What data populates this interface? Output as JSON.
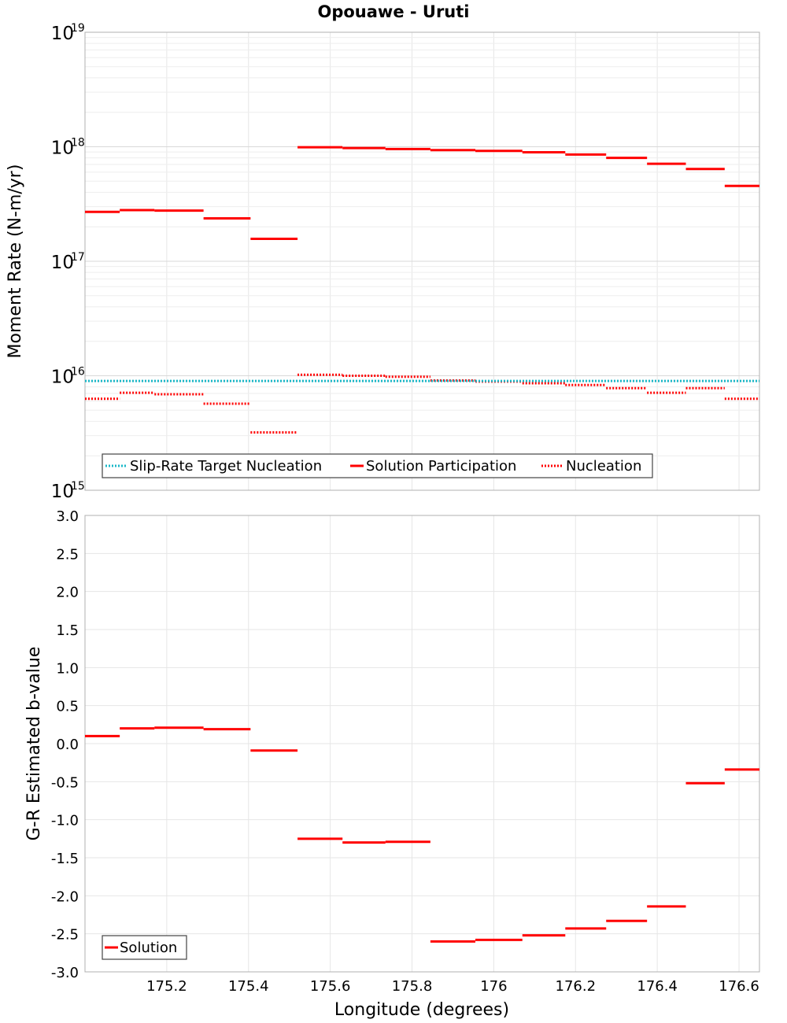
{
  "chart_data": [
    {
      "type": "line",
      "title": "Opouawe - Uruti",
      "ylabel": "Moment Rate (N-m/yr)",
      "xlabel": "",
      "yscale": "log",
      "ylim": [
        1000000000000000.0,
        1e+19
      ],
      "xlim": [
        175.0,
        176.65
      ],
      "x_ticks": [
        175.2,
        175.4,
        175.6,
        175.8,
        176.0,
        176.2,
        176.4,
        176.6
      ],
      "y_ticks": [
        {
          "base": "10",
          "exp": "15"
        },
        {
          "base": "10",
          "exp": "16"
        },
        {
          "base": "10",
          "exp": "17"
        },
        {
          "base": "10",
          "exp": "18"
        },
        {
          "base": "10",
          "exp": "19"
        }
      ],
      "legend_position": "bottom-left",
      "series": [
        {
          "name": "Slip-Rate Target Nucleation",
          "color": "#1bb8c8",
          "style": "dotted",
          "segments": [
            [
              175.0,
              176.65,
              9000000000000000.0
            ]
          ]
        },
        {
          "name": "Solution Participation",
          "color": "#ff0000",
          "style": "solid",
          "segments": [
            [
              175.0,
              175.085,
              2.7e+17
            ],
            [
              175.085,
              175.17,
              2.8e+17
            ],
            [
              175.17,
              175.29,
              2.77e+17
            ],
            [
              175.29,
              175.405,
              2.37e+17
            ],
            [
              175.405,
              175.52,
              1.57e+17
            ],
            [
              175.52,
              175.63,
              9.9e+17
            ],
            [
              175.63,
              175.735,
              9.75e+17
            ],
            [
              175.735,
              175.845,
              9.55e+17
            ],
            [
              175.845,
              175.955,
              9.35e+17
            ],
            [
              175.955,
              176.07,
              9.2e+17
            ],
            [
              176.07,
              176.175,
              8.95e+17
            ],
            [
              176.175,
              176.275,
              8.55e+17
            ],
            [
              176.275,
              176.375,
              8e+17
            ],
            [
              176.375,
              176.47,
              7.1e+17
            ],
            [
              176.47,
              176.565,
              6.4e+17
            ],
            [
              176.565,
              176.65,
              4.55e+17
            ]
          ]
        },
        {
          "name": "Nucleation",
          "color": "#ff0000",
          "style": "dotted",
          "segments": [
            [
              175.0,
              175.085,
              6300000000000000.0
            ],
            [
              175.085,
              175.17,
              7100000000000000.0
            ],
            [
              175.17,
              175.29,
              6900000000000000.0
            ],
            [
              175.29,
              175.405,
              5700000000000000.0
            ],
            [
              175.405,
              175.52,
              3200000000000000.0
            ],
            [
              175.52,
              175.63,
              1.02e+16
            ],
            [
              175.63,
              175.735,
              1e+16
            ],
            [
              175.735,
              175.845,
              9800000000000000.0
            ],
            [
              175.845,
              175.955,
              9100000000000000.0
            ],
            [
              175.955,
              176.07,
              8900000000000000.0
            ],
            [
              176.07,
              176.175,
              8600000000000000.0
            ],
            [
              176.175,
              176.275,
              8300000000000000.0
            ],
            [
              176.275,
              176.375,
              7800000000000000.0
            ],
            [
              176.375,
              176.47,
              7100000000000000.0
            ],
            [
              176.47,
              176.565,
              7800000000000000.0
            ],
            [
              176.565,
              176.65,
              6300000000000000.0
            ]
          ]
        }
      ]
    },
    {
      "type": "line",
      "title": "",
      "ylabel": "G-R Estimated b-value",
      "xlabel": "Longitude (degrees)",
      "ylim": [
        -3.0,
        3.0
      ],
      "xlim": [
        175.0,
        176.65
      ],
      "x_ticks": [
        175.2,
        175.4,
        175.6,
        175.8,
        176.0,
        176.2,
        176.4,
        176.6
      ],
      "x_tick_labels": [
        "175.2",
        "175.4",
        "175.6",
        "175.8",
        "176",
        "176.2",
        "176.4",
        "176.6"
      ],
      "y_ticks": [
        3.0,
        2.5,
        2.0,
        1.5,
        1.0,
        0.5,
        0.0,
        -0.5,
        -1.0,
        -1.5,
        -2.0,
        -2.5,
        -3.0
      ],
      "y_tick_labels": [
        "3.0",
        "2.5",
        "2.0",
        "1.5",
        "1.0",
        "0.5",
        "0.0",
        "-0.5",
        "-1.0",
        "-1.5",
        "-2.0",
        "-2.5",
        "-3.0"
      ],
      "legend_position": "bottom-left",
      "series": [
        {
          "name": "Solution",
          "color": "#ff0000",
          "style": "solid",
          "segments": [
            [
              175.0,
              175.085,
              0.1
            ],
            [
              175.085,
              175.17,
              0.2
            ],
            [
              175.17,
              175.29,
              0.21
            ],
            [
              175.29,
              175.405,
              0.19
            ],
            [
              175.405,
              175.52,
              -0.09
            ],
            [
              175.52,
              175.63,
              -1.25
            ],
            [
              175.63,
              175.735,
              -1.3
            ],
            [
              175.735,
              175.845,
              -1.29
            ],
            [
              175.845,
              175.955,
              -2.6
            ],
            [
              175.955,
              176.07,
              -2.58
            ],
            [
              176.07,
              176.175,
              -2.52
            ],
            [
              176.175,
              176.275,
              -2.43
            ],
            [
              176.275,
              176.375,
              -2.33
            ],
            [
              176.375,
              176.47,
              -2.14
            ],
            [
              176.47,
              176.565,
              -0.52
            ],
            [
              176.565,
              176.65,
              -0.34
            ]
          ]
        }
      ]
    }
  ]
}
